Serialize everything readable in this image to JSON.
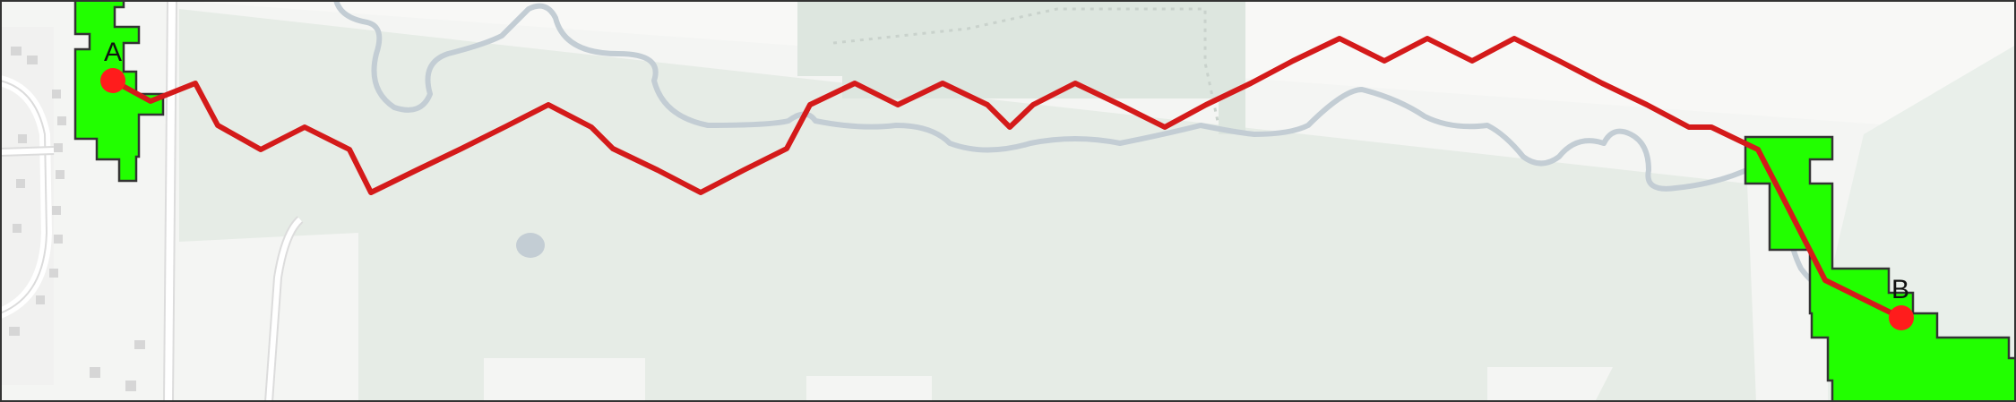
{
  "map": {
    "colors": {
      "background": "#f4f5f3",
      "land_light": "#f8f8f6",
      "forest": "#e6ece6",
      "forest_dark": "#dde6df",
      "water": "#c3cdd4",
      "road": "#ffffff",
      "road_casing": "#dcdcdc",
      "buildings": "#d6d6d6",
      "region_fill": "#22ff00",
      "region_stroke": "#333333",
      "route": "#d41a1a",
      "endpoint": "#ff1c1c"
    },
    "start_point": {
      "label": "A"
    },
    "end_point": {
      "label": "B"
    },
    "route_icon": "route-path",
    "endpoint_icon": "map-pin-dot"
  }
}
